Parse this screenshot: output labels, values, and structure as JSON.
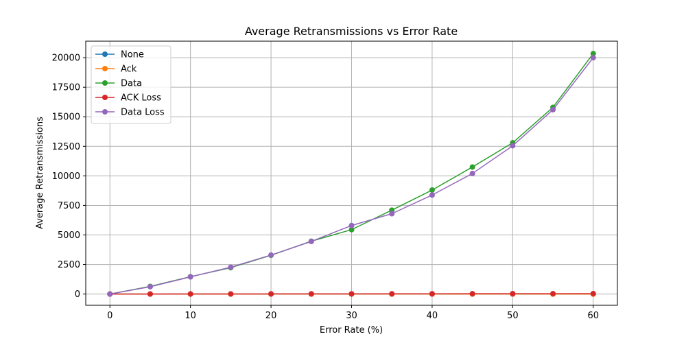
{
  "chart_data": {
    "type": "line",
    "title": "Average Retransmissions vs Error Rate",
    "xlabel": "Error Rate (%)",
    "ylabel": "Average Retransmissions",
    "xlim": [
      -3,
      63
    ],
    "ylim": [
      -950,
      21400
    ],
    "xticks": [
      0,
      10,
      20,
      30,
      40,
      50,
      60
    ],
    "yticks": [
      0,
      2500,
      5000,
      7500,
      10000,
      12500,
      15000,
      17500,
      20000
    ],
    "grid": true,
    "legend_position": "top-left",
    "x": [
      0,
      5,
      10,
      15,
      20,
      25,
      30,
      35,
      40,
      45,
      50,
      55,
      60
    ],
    "series": [
      {
        "name": "None",
        "color": "#1f77b4",
        "values": [
          0,
          0,
          0,
          0,
          0,
          0,
          0,
          0,
          0,
          0,
          0,
          0,
          0
        ]
      },
      {
        "name": "Ack",
        "color": "#ff7f0e",
        "values": [
          0,
          0,
          0,
          0,
          0,
          0,
          0,
          0,
          0,
          0,
          0,
          0,
          0
        ]
      },
      {
        "name": "Data",
        "color": "#2ca02c",
        "values": [
          0,
          650,
          1470,
          2230,
          3280,
          4470,
          5450,
          7100,
          8800,
          10750,
          12800,
          15800,
          20350
        ]
      },
      {
        "name": "ACK Loss",
        "color": "#d62728",
        "values": [
          0,
          3,
          6,
          9,
          12,
          15,
          18,
          21,
          24,
          27,
          30,
          33,
          36
        ]
      },
      {
        "name": "Data Loss",
        "color": "#9467bd",
        "values": [
          0,
          620,
          1450,
          2270,
          3300,
          4450,
          5800,
          6800,
          8380,
          10200,
          12550,
          15600,
          20000
        ]
      }
    ]
  }
}
